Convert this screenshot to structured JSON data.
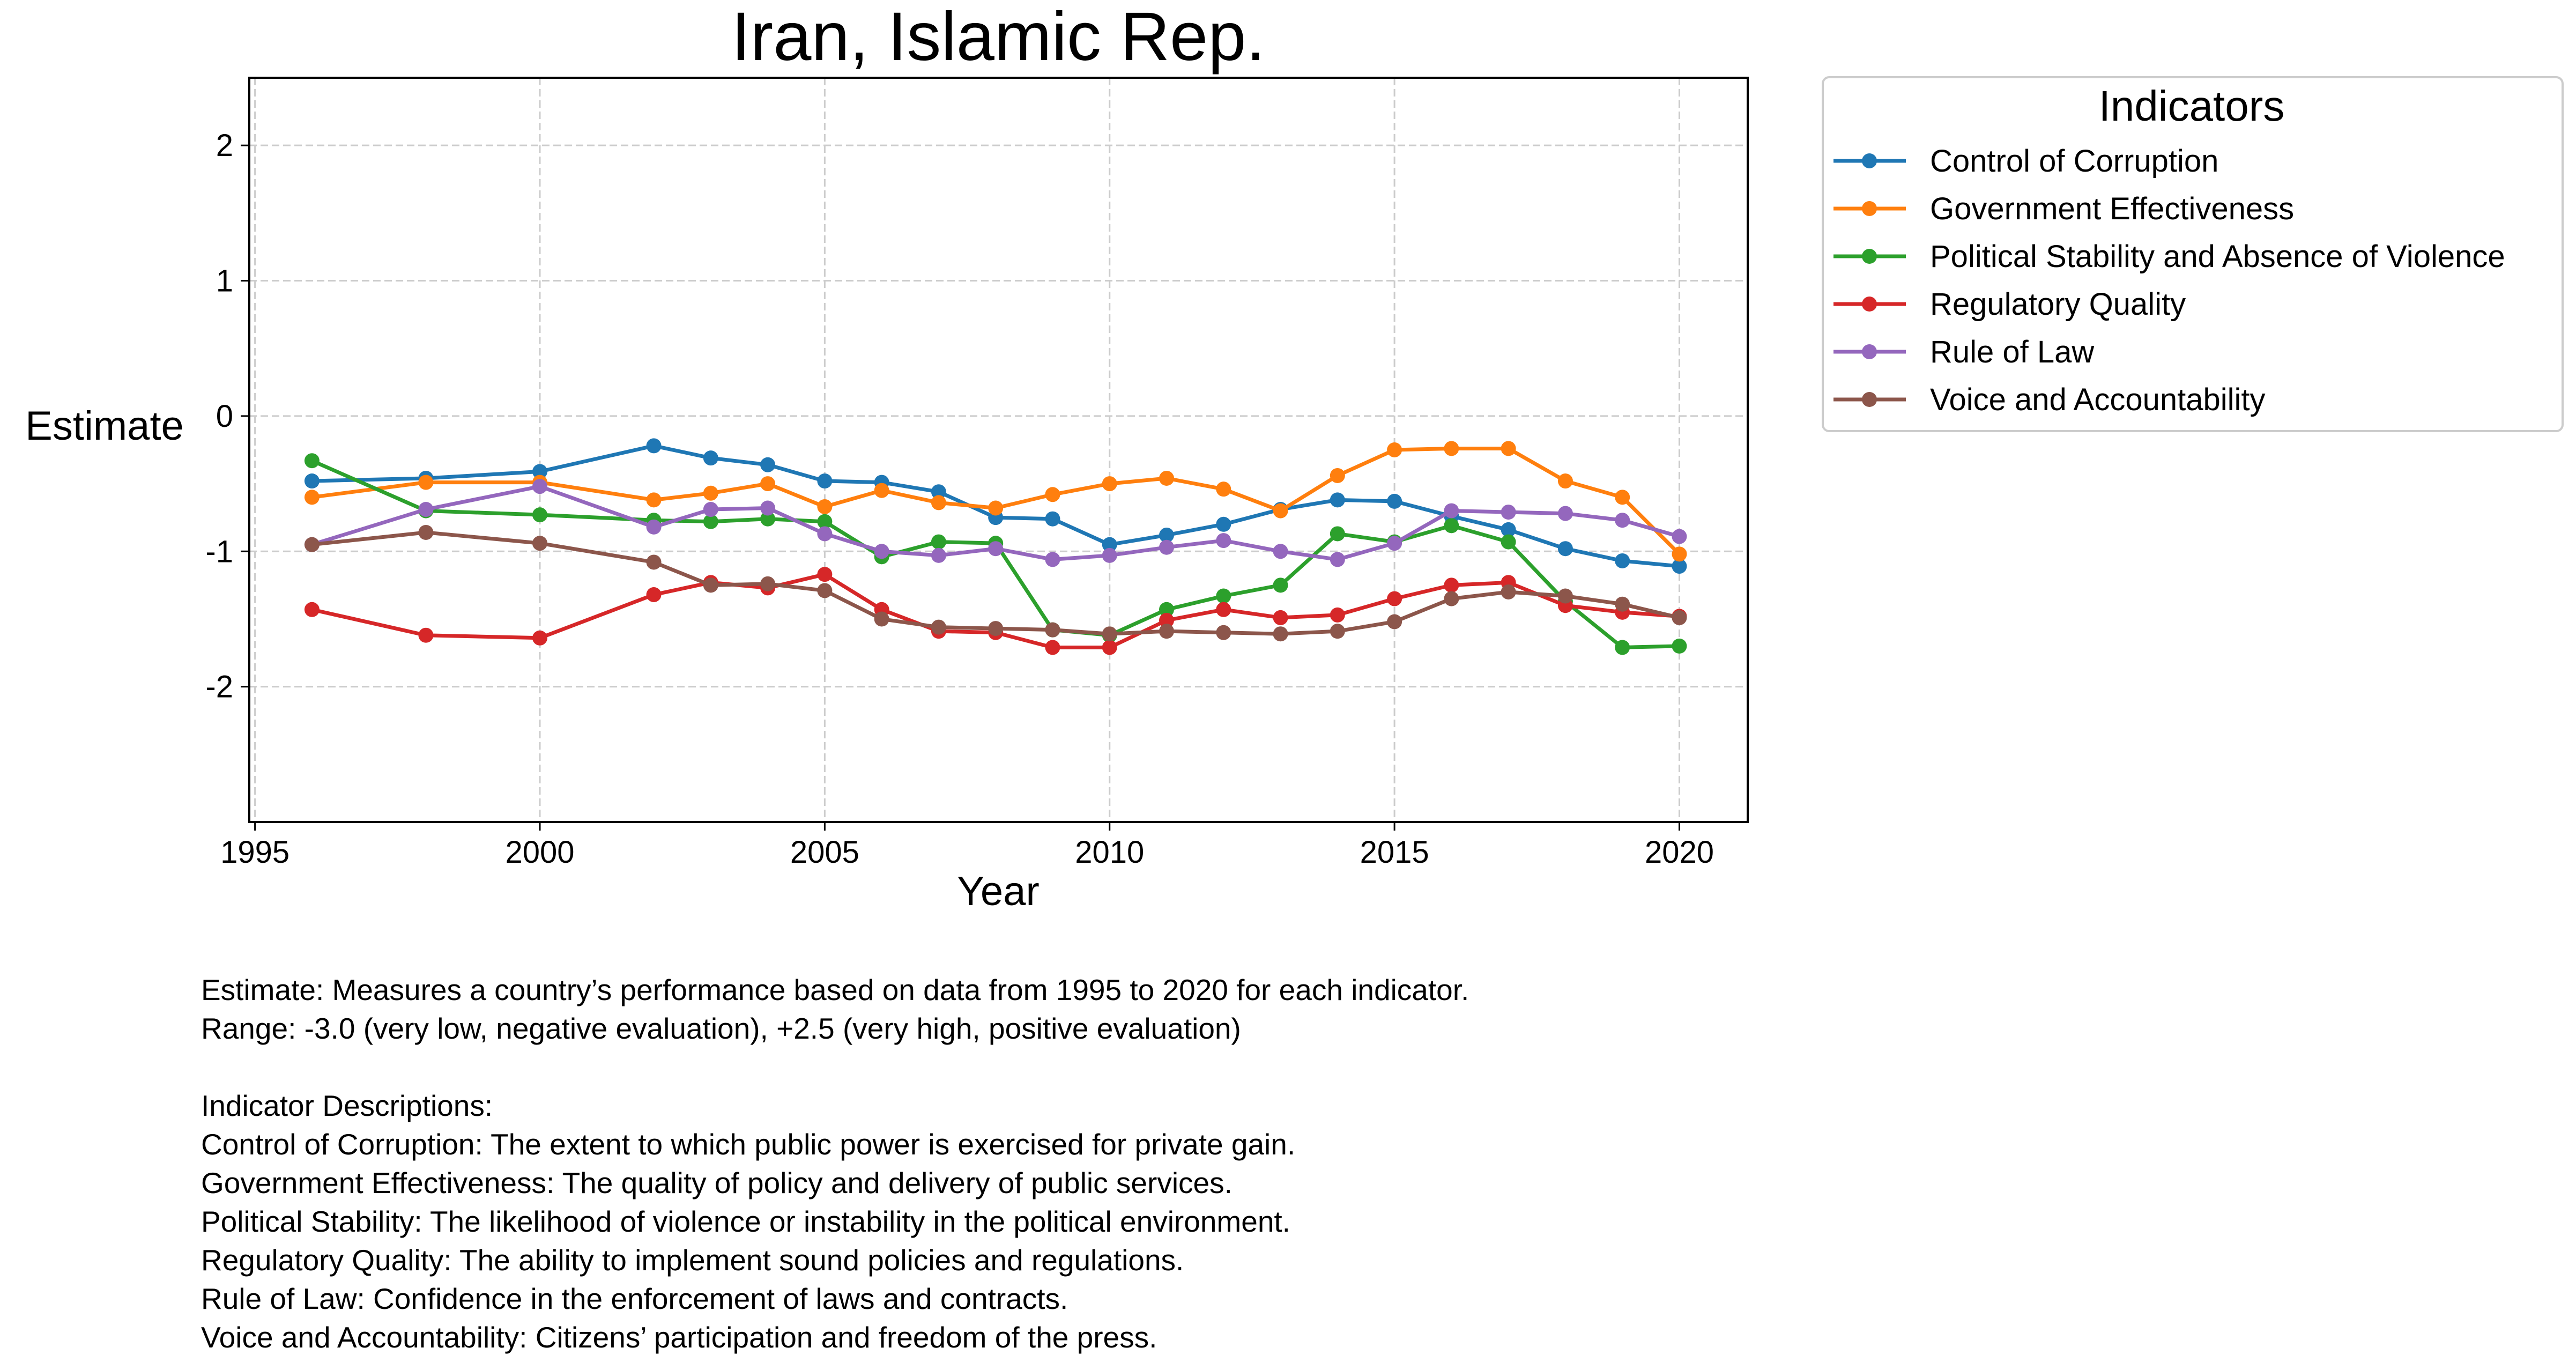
{
  "chart_data": {
    "type": "line",
    "title": "Iran, Islamic Rep.",
    "xlabel": "Year",
    "ylabel": "Estimate",
    "xlim": [
      1994.9,
      2021.2
    ],
    "ylim": [
      -3.0,
      2.5
    ],
    "xticks": [
      1995,
      2000,
      2005,
      2010,
      2015,
      2020
    ],
    "yticks": [
      -2,
      -1,
      0,
      1,
      2
    ],
    "grid": true,
    "legend": {
      "title": "Indicators",
      "placement": "outside-right-top"
    },
    "x": [
      1996,
      1998,
      2000,
      2002,
      2003,
      2004,
      2005,
      2006,
      2007,
      2008,
      2009,
      2010,
      2011,
      2012,
      2013,
      2014,
      2015,
      2016,
      2017,
      2018,
      2019,
      2020
    ],
    "series": [
      {
        "name": "Control of Corruption",
        "color": "#1f77b4",
        "values": [
          -0.48,
          -0.46,
          -0.41,
          -0.22,
          -0.31,
          -0.36,
          -0.48,
          -0.49,
          -0.56,
          -0.75,
          -0.76,
          -0.95,
          -0.88,
          -0.8,
          -0.69,
          -0.62,
          -0.63,
          -0.74,
          -0.84,
          -0.98,
          -1.07,
          -1.11
        ]
      },
      {
        "name": "Government Effectiveness",
        "color": "#ff7f0e",
        "values": [
          -0.6,
          -0.49,
          -0.49,
          -0.62,
          -0.57,
          -0.5,
          -0.67,
          -0.55,
          -0.64,
          -0.68,
          -0.58,
          -0.5,
          -0.46,
          -0.54,
          -0.7,
          -0.44,
          -0.25,
          -0.24,
          -0.24,
          -0.48,
          -0.6,
          -1.02
        ]
      },
      {
        "name": "Political Stability and Absence of Violence",
        "color": "#2ca02c",
        "values": [
          -0.33,
          -0.7,
          -0.73,
          -0.77,
          -0.78,
          -0.76,
          -0.78,
          -1.04,
          -0.93,
          -0.94,
          -1.58,
          -1.62,
          -1.43,
          -1.33,
          -1.25,
          -0.87,
          -0.93,
          -0.81,
          -0.93,
          -1.37,
          -1.71,
          -1.7
        ]
      },
      {
        "name": "Regulatory Quality",
        "color": "#d62728",
        "values": [
          -1.43,
          -1.62,
          -1.64,
          -1.32,
          -1.23,
          -1.27,
          -1.17,
          -1.43,
          -1.59,
          -1.6,
          -1.71,
          -1.71,
          -1.51,
          -1.43,
          -1.49,
          -1.47,
          -1.35,
          -1.25,
          -1.23,
          -1.4,
          -1.45,
          -1.48
        ]
      },
      {
        "name": "Rule of Law",
        "color": "#9467bd",
        "values": [
          -0.95,
          -0.69,
          -0.52,
          -0.82,
          -0.69,
          -0.68,
          -0.87,
          -1.0,
          -1.03,
          -0.98,
          -1.06,
          -1.03,
          -0.97,
          -0.92,
          -1.0,
          -1.06,
          -0.94,
          -0.7,
          -0.71,
          -0.72,
          -0.77,
          -0.89
        ]
      },
      {
        "name": "Voice and Accountability",
        "color": "#8c564b",
        "values": [
          -0.95,
          -0.86,
          -0.94,
          -1.08,
          -1.25,
          -1.24,
          -1.29,
          -1.5,
          -1.56,
          -1.57,
          -1.58,
          -1.61,
          -1.59,
          -1.6,
          -1.61,
          -1.59,
          -1.52,
          -1.35,
          -1.3,
          -1.33,
          -1.39,
          -1.49
        ]
      }
    ]
  },
  "notes": {
    "estimate": "Estimate: Measures a country’s performance based on data from 1995 to 2020 for each indicator.",
    "range": "Range: -3.0 (very low, negative evaluation), +2.5 (very high, positive evaluation)",
    "heading": "Indicator Descriptions:",
    "descriptions": [
      "Control of Corruption: The extent to which public power is exercised for private gain.",
      "Government Effectiveness: The quality of policy and delivery of public services.",
      "Political Stability: The likelihood of violence or instability in the political environment.",
      "Regulatory Quality: The ability to implement sound policies and regulations.",
      "Rule of Law: Confidence in the enforcement of laws and contracts.",
      "Voice and Accountability: Citizens’ participation and freedom of the press."
    ]
  }
}
